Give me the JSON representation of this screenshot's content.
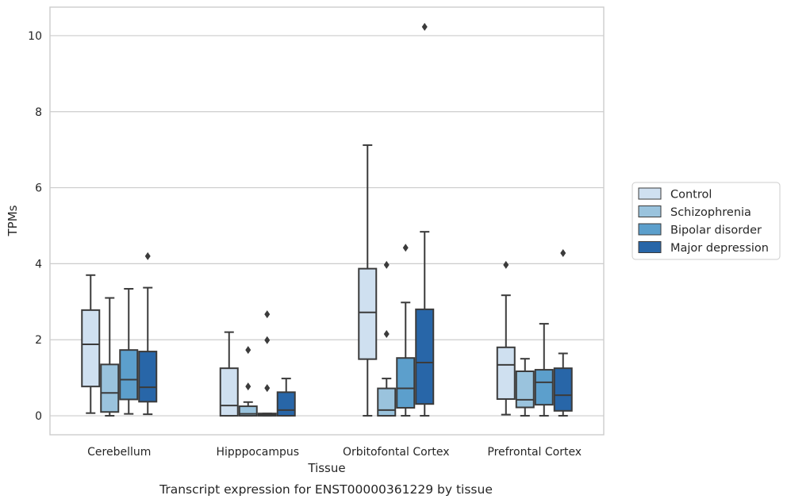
{
  "chart_data": {
    "type": "box",
    "xlabel": "Tissue",
    "ylabel": "TPMs",
    "caption": "Transcript expression for ENST00000361229 by tissue",
    "ylim": [
      -0.5,
      10.75
    ],
    "yticks": [
      0,
      2,
      4,
      6,
      8,
      10
    ],
    "grid": "horizontal",
    "legend_placement": "right-center",
    "categories": [
      "Cerebellum",
      "Hipppocampus",
      "Orbitofontal Cortex",
      "Prefrontal Cortex"
    ],
    "series": [
      {
        "name": "Control",
        "color": "#cfe0f0",
        "boxes": [
          {
            "whislo": 0.07,
            "q1": 0.77,
            "med": 1.88,
            "q3": 2.78,
            "whishi": 3.7,
            "fliers": []
          },
          {
            "whislo": 0.0,
            "q1": 0.0,
            "med": 0.27,
            "q3": 1.25,
            "whishi": 2.2,
            "fliers": []
          },
          {
            "whislo": 0.0,
            "q1": 1.49,
            "med": 2.72,
            "q3": 3.87,
            "whishi": 7.12,
            "fliers": []
          },
          {
            "whislo": 0.03,
            "q1": 0.44,
            "med": 1.34,
            "q3": 1.8,
            "whishi": 3.17,
            "fliers": [
              3.97
            ]
          }
        ]
      },
      {
        "name": "Schizophrenia",
        "color": "#9ac3dd",
        "boxes": [
          {
            "whislo": 0.0,
            "q1": 0.1,
            "med": 0.6,
            "q3": 1.35,
            "whishi": 3.1,
            "fliers": []
          },
          {
            "whislo": 0.0,
            "q1": 0.0,
            "med": 0.05,
            "q3": 0.25,
            "whishi": 0.36,
            "fliers": [
              0.77,
              1.73
            ]
          },
          {
            "whislo": 0.0,
            "q1": 0.0,
            "med": 0.15,
            "q3": 0.72,
            "whishi": 0.98,
            "fliers": [
              2.15,
              3.97
            ]
          },
          {
            "whislo": 0.0,
            "q1": 0.22,
            "med": 0.42,
            "q3": 1.17,
            "whishi": 1.5,
            "fliers": []
          }
        ]
      },
      {
        "name": "Bipolar disorder",
        "color": "#5c9fcc",
        "boxes": [
          {
            "whislo": 0.05,
            "q1": 0.43,
            "med": 0.95,
            "q3": 1.73,
            "whishi": 3.34,
            "fliers": []
          },
          {
            "whislo": 0.0,
            "q1": 0.0,
            "med": 0.04,
            "q3": 0.06,
            "whishi": 0.06,
            "fliers": [
              0.73,
              1.99,
              2.67
            ]
          },
          {
            "whislo": 0.0,
            "q1": 0.21,
            "med": 0.72,
            "q3": 1.52,
            "whishi": 2.98,
            "fliers": [
              4.42
            ]
          },
          {
            "whislo": 0.0,
            "q1": 0.29,
            "med": 0.88,
            "q3": 1.21,
            "whishi": 2.42,
            "fliers": []
          }
        ]
      },
      {
        "name": "Major depression",
        "color": "#2866a8",
        "boxes": [
          {
            "whislo": 0.04,
            "q1": 0.37,
            "med": 0.75,
            "q3": 1.69,
            "whishi": 3.37,
            "fliers": [
              4.2
            ]
          },
          {
            "whislo": 0.0,
            "q1": 0.0,
            "med": 0.15,
            "q3": 0.62,
            "whishi": 0.98,
            "fliers": []
          },
          {
            "whislo": 0.0,
            "q1": 0.31,
            "med": 1.4,
            "q3": 2.8,
            "whishi": 4.84,
            "fliers": [
              10.23
            ]
          },
          {
            "whislo": 0.0,
            "q1": 0.13,
            "med": 0.54,
            "q3": 1.25,
            "whishi": 1.64,
            "fliers": [
              4.28
            ]
          }
        ]
      }
    ]
  }
}
